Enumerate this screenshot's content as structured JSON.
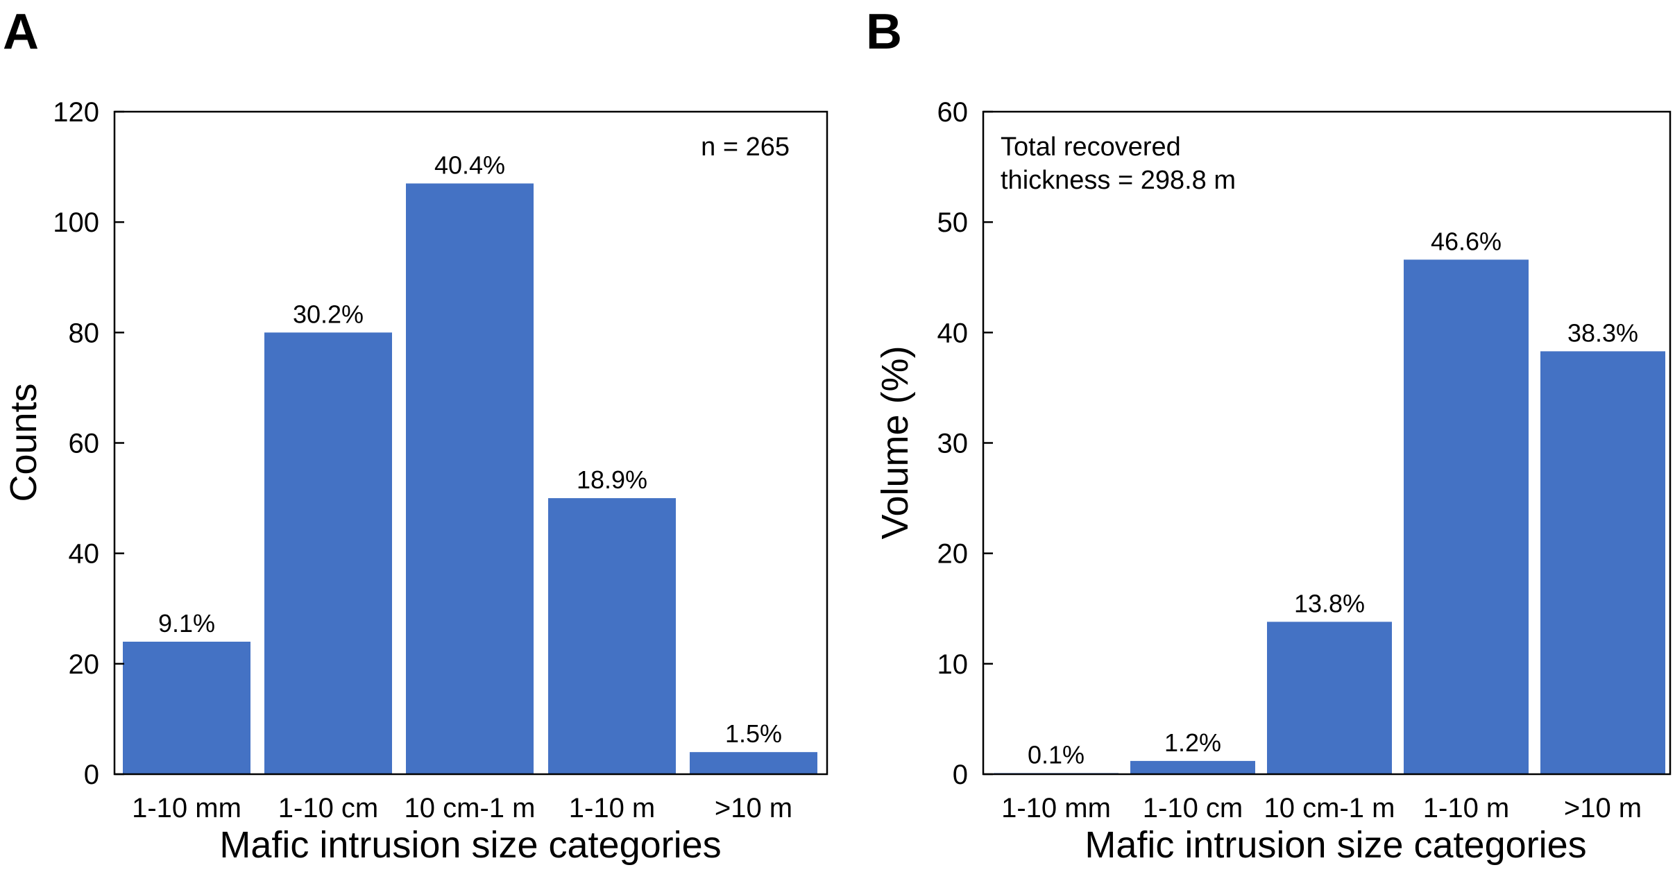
{
  "chart_data": [
    {
      "type": "bar",
      "panel": "A",
      "categories": [
        "1-10 mm",
        "1-10 cm",
        "10 cm-1 m",
        "1-10 m",
        ">10 m"
      ],
      "values": [
        24,
        80,
        107,
        50,
        4
      ],
      "bar_labels": [
        "9.1%",
        "30.2%",
        "40.4%",
        "18.9%",
        "1.5%"
      ],
      "xlabel": "Mafic intrusion size categories",
      "ylabel": "Counts",
      "ylim": [
        0,
        120
      ],
      "yticks": [
        0,
        20,
        40,
        60,
        80,
        100,
        120
      ],
      "annotation": "n = 265",
      "grid": false,
      "bar_color": "#4472c4"
    },
    {
      "type": "bar",
      "panel": "B",
      "categories": [
        "1-10 mm",
        "1-10 cm",
        "10 cm-1 m",
        "1-10 m",
        ">10 m"
      ],
      "values": [
        0.1,
        1.2,
        13.8,
        46.6,
        38.3
      ],
      "bar_labels": [
        "0.1%",
        "1.2%",
        "13.8%",
        "46.6%",
        "38.3%"
      ],
      "xlabel": "Mafic intrusion size categories",
      "ylabel": "Volume (%)",
      "ylim": [
        0,
        60
      ],
      "yticks": [
        0,
        10,
        20,
        30,
        40,
        50,
        60
      ],
      "annotation": [
        "Total recovered",
        "thickness = 298.8 m"
      ],
      "grid": false,
      "bar_color": "#4472c4"
    }
  ]
}
